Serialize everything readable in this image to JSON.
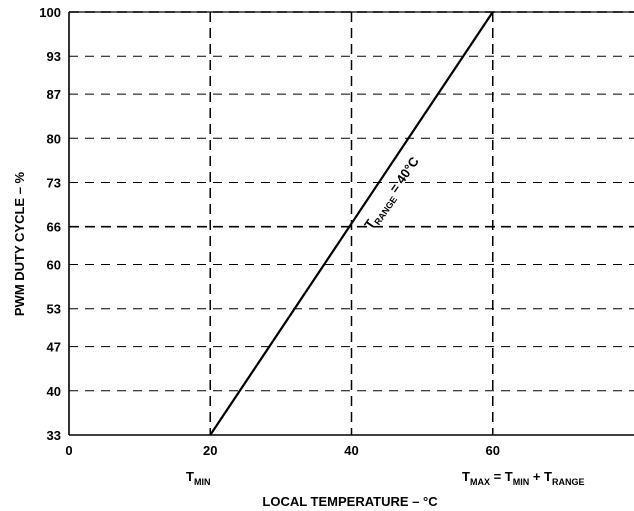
{
  "chart_data": {
    "type": "line",
    "xlabel": "LOCAL TEMPERATURE –  °C",
    "ylabel": "PWM DUTY CYCLE – %",
    "xlim": [
      0,
      80
    ],
    "ylim": [
      33,
      100
    ],
    "x_ticks": [
      0,
      20,
      40,
      60
    ],
    "y_ticks": [
      {
        "label": "33",
        "value": 33
      },
      {
        "label": "40",
        "value": 40
      },
      {
        "label": "47",
        "value": 47
      },
      {
        "label": "53",
        "value": 53
      },
      {
        "label": "60",
        "value": 60
      },
      {
        "label": "66",
        "value": 66
      },
      {
        "label": "73",
        "value": 73
      },
      {
        "label": "80",
        "value": 80
      },
      {
        "label": "87",
        "value": 87
      },
      {
        "label": "93",
        "value": 93
      },
      {
        "label": "100",
        "value": 100
      }
    ],
    "grid": {
      "horizontal_dashed_y": [
        40,
        47,
        53,
        60,
        66,
        73,
        80,
        87,
        93,
        100
      ],
      "vertical_dashed_x": [
        20,
        40,
        60
      ],
      "bold_dash_y": [
        66,
        100
      ]
    },
    "series": [
      {
        "x": [
          20,
          60
        ],
        "y": [
          33,
          100
        ]
      }
    ],
    "annotations": {
      "line_label": {
        "main": "T",
        "sub": "RANGE",
        "rest": " = 40°C"
      },
      "tmin": {
        "main": "T",
        "sub": "MIN"
      },
      "tmax": {
        "parts": [
          {
            "t": "T",
            "s": false
          },
          {
            "t": "MAX",
            "s": true
          },
          {
            "t": " = T",
            "s": false
          },
          {
            "t": "MIN",
            "s": true
          },
          {
            "t": " + T",
            "s": false
          },
          {
            "t": "RANGE",
            "s": true
          }
        ]
      }
    },
    "colors": {
      "line": "#000000",
      "grid": "#000000"
    }
  }
}
